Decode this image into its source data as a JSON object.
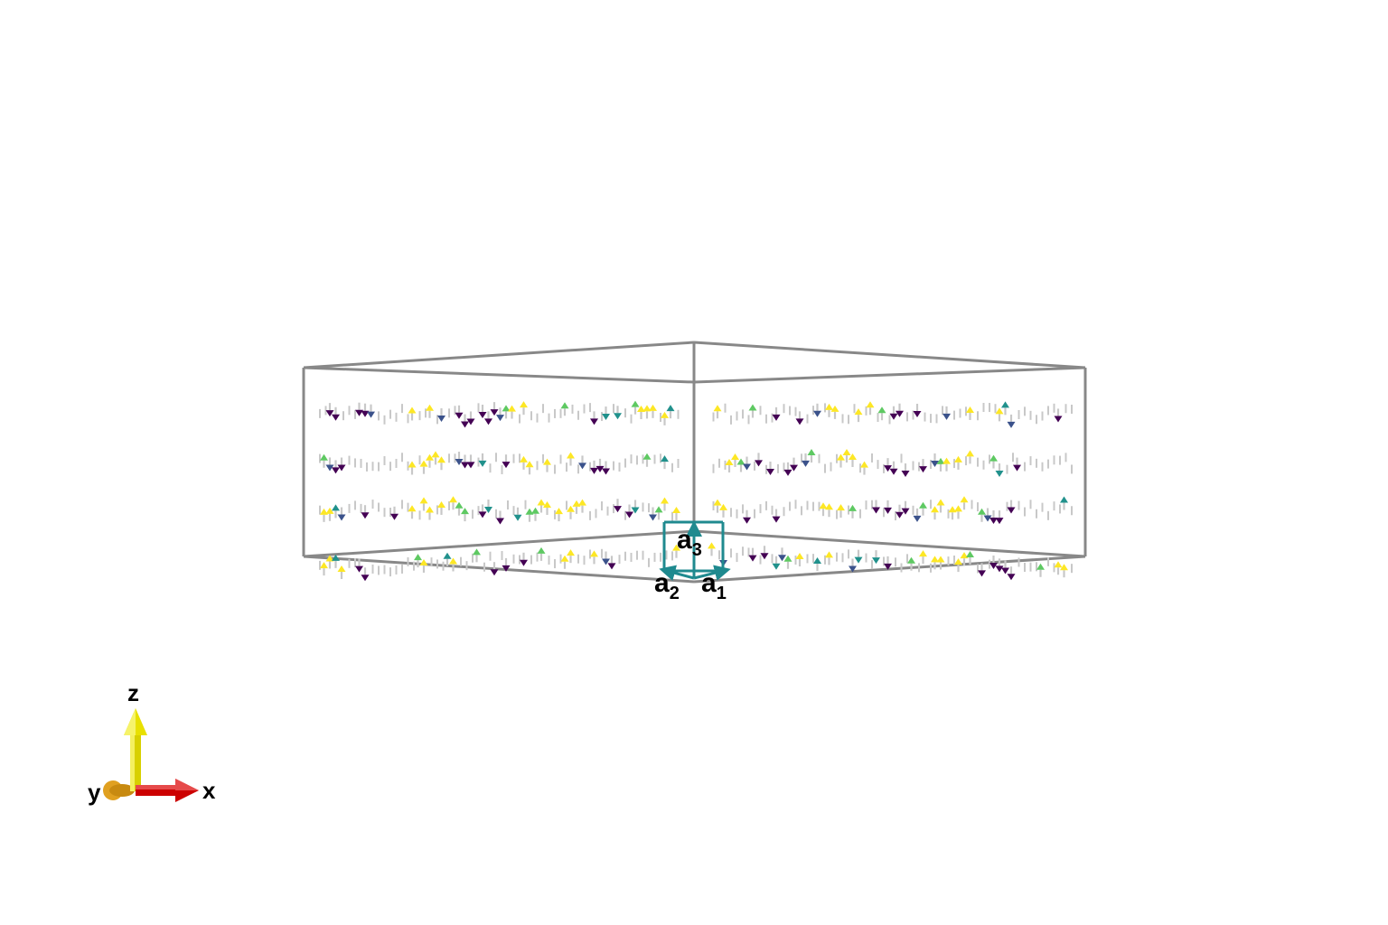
{
  "scene": {
    "type": "3d-spin-texture-render",
    "arrow_colormap": [
      "#440154",
      "#3b528b",
      "#21918c",
      "#5ec962",
      "#fde725"
    ],
    "shaft_color": "#c8c8c8",
    "box_color": "#888888",
    "cell_color": "#1f8a8f",
    "layers": 4
  },
  "lattice_vectors": {
    "a1": {
      "letter": "a",
      "sub": "1"
    },
    "a2": {
      "letter": "a",
      "sub": "2"
    },
    "a3": {
      "letter": "a",
      "sub": "3"
    }
  },
  "axes_gizmo": {
    "x_label": "x",
    "y_label": "y",
    "z_label": "z",
    "x_color": "#cc0000",
    "y_color": "#e0a020",
    "z_color": "#e8e000"
  }
}
